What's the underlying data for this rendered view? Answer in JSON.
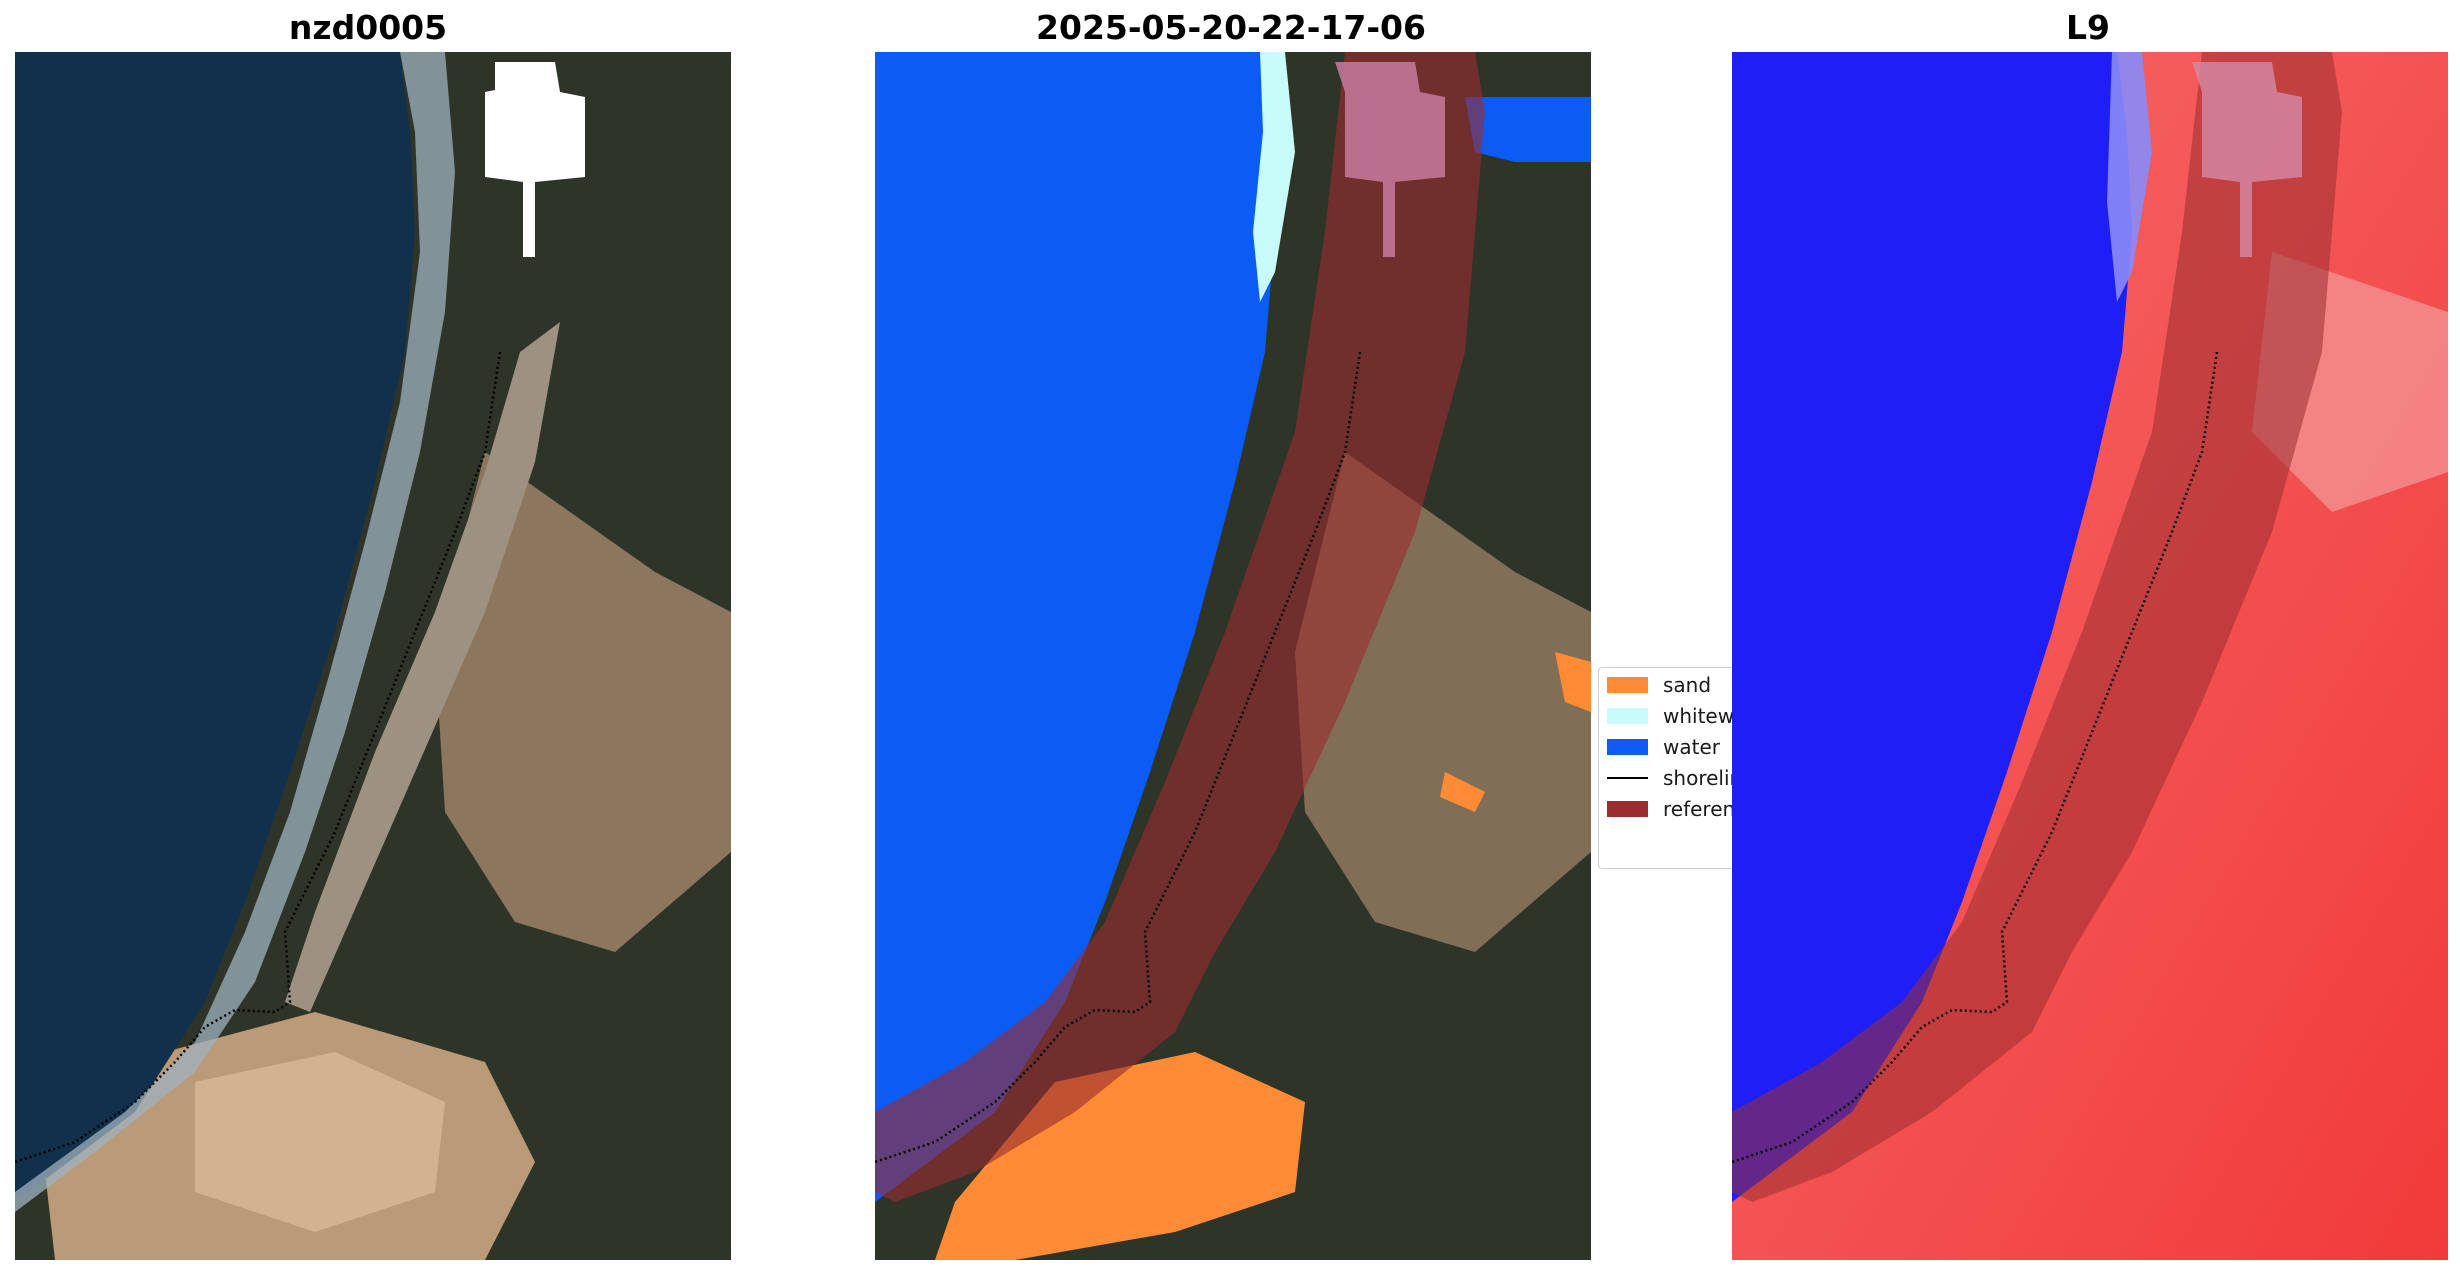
{
  "panels": [
    {
      "title": "nzd0005",
      "kind": "rgb"
    },
    {
      "title": "2025-05-20-22-17-06",
      "kind": "classification"
    },
    {
      "title": "L9",
      "kind": "index"
    }
  ],
  "legend": {
    "items": [
      {
        "label": "sand",
        "color": "#ff8c35",
        "type": "patch"
      },
      {
        "label": "whitewater",
        "color": "#c8fcfb",
        "type": "patch"
      },
      {
        "label": "water",
        "color": "#0a5cf5",
        "type": "patch"
      },
      {
        "label": "shoreline",
        "color": "#000000",
        "type": "line"
      },
      {
        "label": "reference shoreline buffer",
        "color": "#9a2d2f",
        "type": "patch"
      }
    ]
  },
  "colors": {
    "ocean": "#0f2f4a",
    "land_dark": "#2e3328",
    "sand_beach": "#c2a784",
    "class_water": "#0a5cf5",
    "class_sand": "#ff8c35",
    "class_whitewater": "#c8fcfb",
    "buffer": "#9a2d2f",
    "index_low": "#1f1ff5",
    "index_high": "#f23a3a"
  }
}
